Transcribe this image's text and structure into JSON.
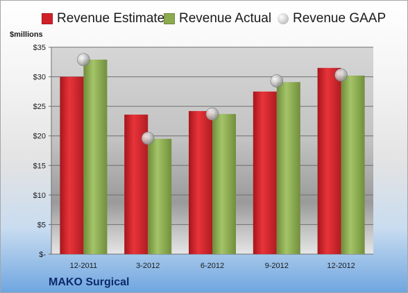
{
  "chart_data": {
    "type": "bar",
    "categories": [
      "12-2011",
      "3-2012",
      "6-2012",
      "9-2012",
      "12-2012"
    ],
    "series": [
      {
        "name": "Revenue Estimate",
        "type": "bar",
        "color": "#d02128",
        "values": [
          30.0,
          23.6,
          24.2,
          27.5,
          31.5
        ]
      },
      {
        "name": "Revenue Actual",
        "type": "bar",
        "color": "#8cab4f",
        "values": [
          32.9,
          19.5,
          23.7,
          29.1,
          30.2
        ]
      },
      {
        "name": "Revenue GAAP",
        "type": "marker",
        "color": "#bfbfbf",
        "values": [
          32.9,
          19.6,
          23.7,
          29.3,
          30.3
        ]
      }
    ],
    "ylabel": "$millions",
    "ylim": [
      0,
      35
    ],
    "yticks": [
      0,
      5,
      10,
      15,
      20,
      25,
      30,
      35
    ],
    "ytick_labels": [
      "$-",
      "$5",
      "$10",
      "$15",
      "$20",
      "$25",
      "$30",
      "$35"
    ],
    "grid": true,
    "legend_position": "top"
  },
  "footer": {
    "company": "MAKO Surgical"
  }
}
